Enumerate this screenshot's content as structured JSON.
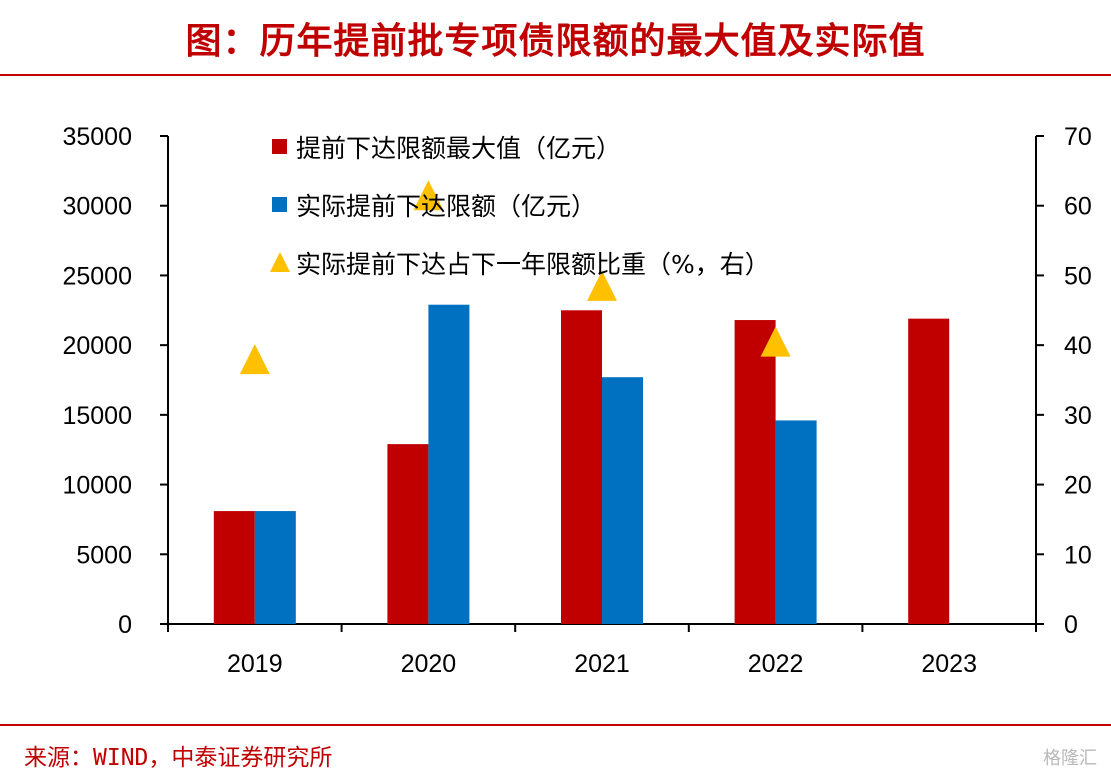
{
  "header": {
    "title": "图：历年提前批专项债限额的最大值及实际值"
  },
  "colors": {
    "brand_red": "#c00000",
    "max_series": "#c00000",
    "actual_series": "#0070c0",
    "ratio_series": "#ffc000",
    "axis": "#000000",
    "text": "#000000",
    "watermark": "#b9b9b9"
  },
  "chart_data": {
    "type": "bar",
    "categories": [
      "2019",
      "2020",
      "2021",
      "2022",
      "2023"
    ],
    "series": [
      {
        "name": "提前下达限额最大值（亿元）",
        "type": "bar",
        "axis": "left",
        "values": [
          8100,
          12900,
          22500,
          21800,
          21900
        ]
      },
      {
        "name": "实际提前下达限额（亿元）",
        "type": "bar",
        "axis": "left",
        "values": [
          8100,
          22900,
          17700,
          14600,
          null
        ]
      },
      {
        "name": "实际提前下达占下一年限额比重（%，右）",
        "type": "scatter",
        "axis": "right",
        "values": [
          38,
          61.5,
          48.5,
          40.5,
          null
        ]
      }
    ],
    "ylim": [
      0,
      35000
    ],
    "y2lim": [
      0,
      70
    ],
    "yticks": [
      "0",
      "5000",
      "10000",
      "15000",
      "20000",
      "25000",
      "30000",
      "35000"
    ],
    "y2ticks": [
      "0",
      "10",
      "20",
      "30",
      "40",
      "50",
      "60",
      "70"
    ],
    "legend_position": "top-center",
    "grid": false
  },
  "footer": {
    "source": "来源：WIND，中泰证券研究所",
    "watermark": "格隆汇"
  }
}
